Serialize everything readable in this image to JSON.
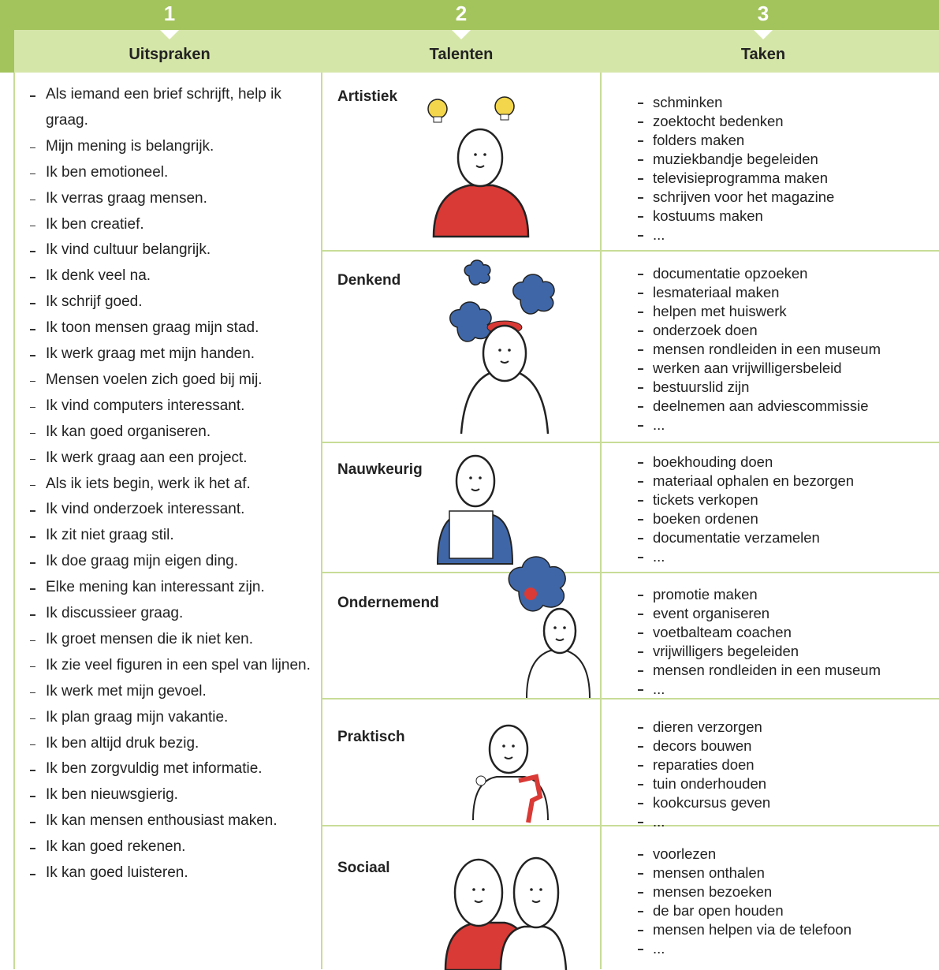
{
  "header": {
    "columns": [
      {
        "number": "1",
        "title": "Uitspraken"
      },
      {
        "number": "2",
        "title": "Talenten"
      },
      {
        "number": "3",
        "title": "Taken"
      }
    ]
  },
  "statements": [
    "Als iemand een brief schrijft, help ik graag.",
    "Mijn mening is belangrijk.",
    "Ik ben emotioneel.",
    "Ik verras graag mensen.",
    "Ik ben creatief.",
    "Ik vind cultuur belangrijk.",
    "Ik denk veel na.",
    "Ik schrijf goed.",
    "Ik toon mensen graag mijn stad.",
    "Ik werk graag met mijn handen.",
    "Mensen voelen zich goed bij mij.",
    "Ik vind computers interessant.",
    "Ik kan goed organiseren.",
    "Ik werk graag aan een project.",
    "Als ik iets begin, werk ik het af.",
    "Ik vind onderzoek interessant.",
    "Ik zit niet graag stil.",
    "Ik doe graag mijn eigen ding.",
    "Elke mening kan interessant zijn.",
    "Ik discussieer graag.",
    "Ik groet mensen die ik niet ken.",
    "Ik zie veel figuren in een spel van lijnen.",
    "Ik werk met mijn gevoel.",
    "Ik plan graag mijn vakantie.",
    "Ik ben altijd druk bezig.",
    "Ik ben zorgvuldig met informatie.",
    "Ik ben nieuwsgierig.",
    "Ik kan mensen enthousiast maken.",
    "Ik kan goed rekenen.",
    "Ik kan goed luisteren."
  ],
  "talents": [
    {
      "name": "Artistiek",
      "tasks": [
        "schminken",
        "zoektocht bedenken",
        "folders maken",
        "muziekbandje begeleiden",
        "televisieprogramma maken",
        "schrijven voor het magazine",
        "kostuums maken",
        "..."
      ]
    },
    {
      "name": "Denkend",
      "tasks": [
        "documentatie opzoeken",
        "lesmateriaal maken",
        "helpen met huiswerk",
        "onderzoek doen",
        "mensen rondleiden in een museum",
        "werken aan vrijwilligersbeleid",
        "bestuurslid zijn",
        "deelnemen aan adviescommissie",
        "..."
      ]
    },
    {
      "name": "Nauwkeurig",
      "tasks": [
        "boekhouding doen",
        "materiaal ophalen en bezorgen",
        "tickets verkopen",
        "boeken ordenen",
        "documentatie verzamelen",
        "..."
      ]
    },
    {
      "name": "Ondernemend",
      "tasks": [
        "promotie maken",
        "event organiseren",
        "voetbalteam coachen",
        "vrijwilligers begeleiden",
        "mensen rondleiden in een museum",
        "..."
      ]
    },
    {
      "name": "Praktisch",
      "tasks": [
        "dieren verzorgen",
        "decors bouwen",
        "reparaties doen",
        "tuin onderhouden",
        "kookcursus geven",
        "..."
      ]
    },
    {
      "name": "Sociaal",
      "tasks": [
        "voorlezen",
        "mensen onthalen",
        "mensen bezoeken",
        "de bar open houden",
        "mensen helpen via de telefoon",
        "..."
      ]
    }
  ]
}
